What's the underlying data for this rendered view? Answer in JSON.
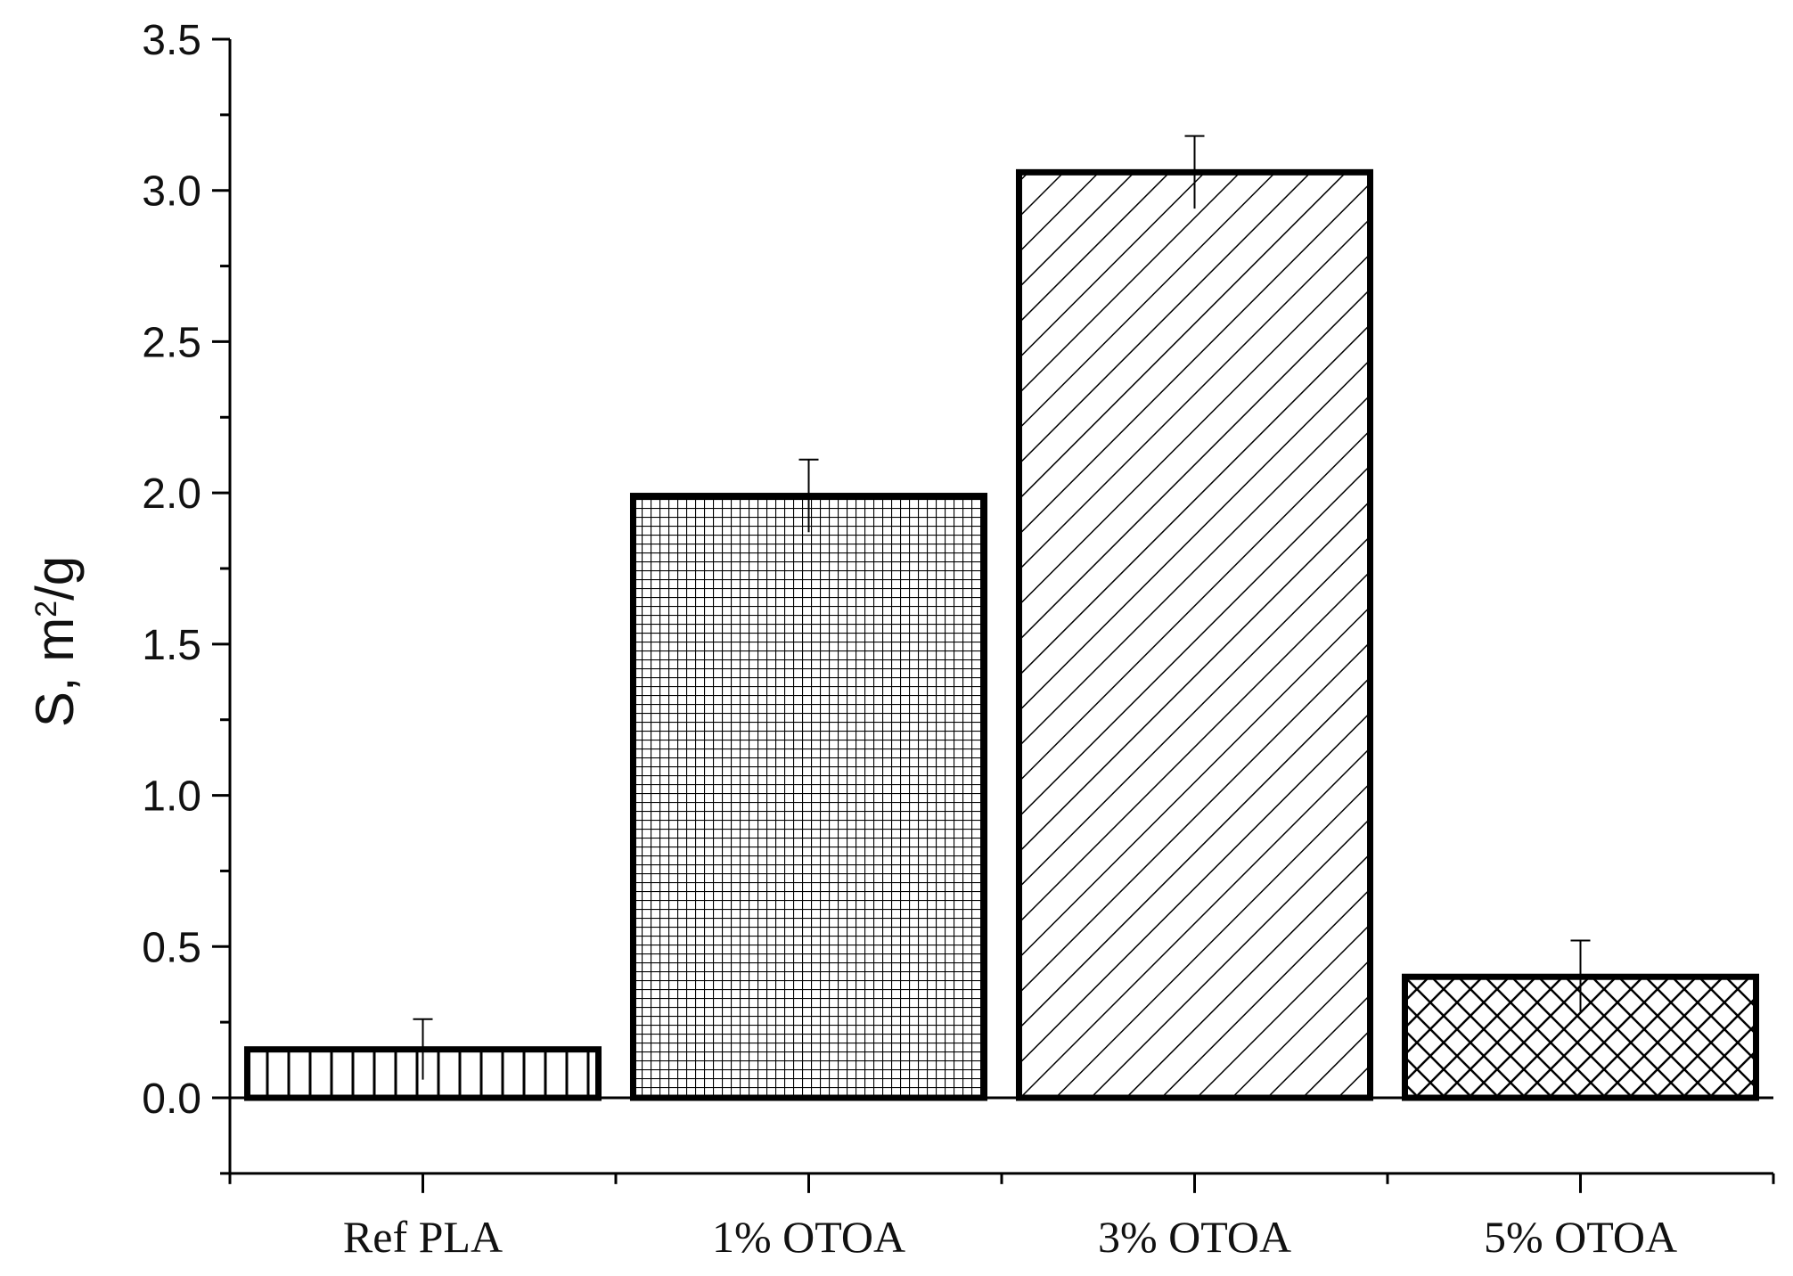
{
  "chart_data": {
    "type": "bar",
    "title": "",
    "xlabel": "",
    "ylabel": "S, m²/g",
    "ylabel_parts": {
      "prefix": "S, m",
      "superscript": "2",
      "suffix": "/g"
    },
    "categories": [
      "Ref PLA",
      "1% OTOA",
      "3% OTOA",
      "5% OTOA"
    ],
    "values": [
      0.16,
      1.99,
      3.06,
      0.4
    ],
    "errors": [
      0.1,
      0.12,
      0.12,
      0.12
    ],
    "patterns": [
      "vertical-lines",
      "grid",
      "diagonal-lines",
      "crosshatch"
    ],
    "ylim": [
      -0.25,
      3.5
    ],
    "yticks": [
      0.0,
      0.5,
      1.0,
      1.5,
      2.0,
      2.5,
      3.0,
      3.5
    ],
    "ytick_labels": [
      "0.0",
      "0.5",
      "1.0",
      "1.5",
      "2.0",
      "2.5",
      "3.0",
      "3.5"
    ],
    "grid": false,
    "legend": "none",
    "colors": {
      "stroke": "#000000",
      "background": "#ffffff"
    }
  }
}
